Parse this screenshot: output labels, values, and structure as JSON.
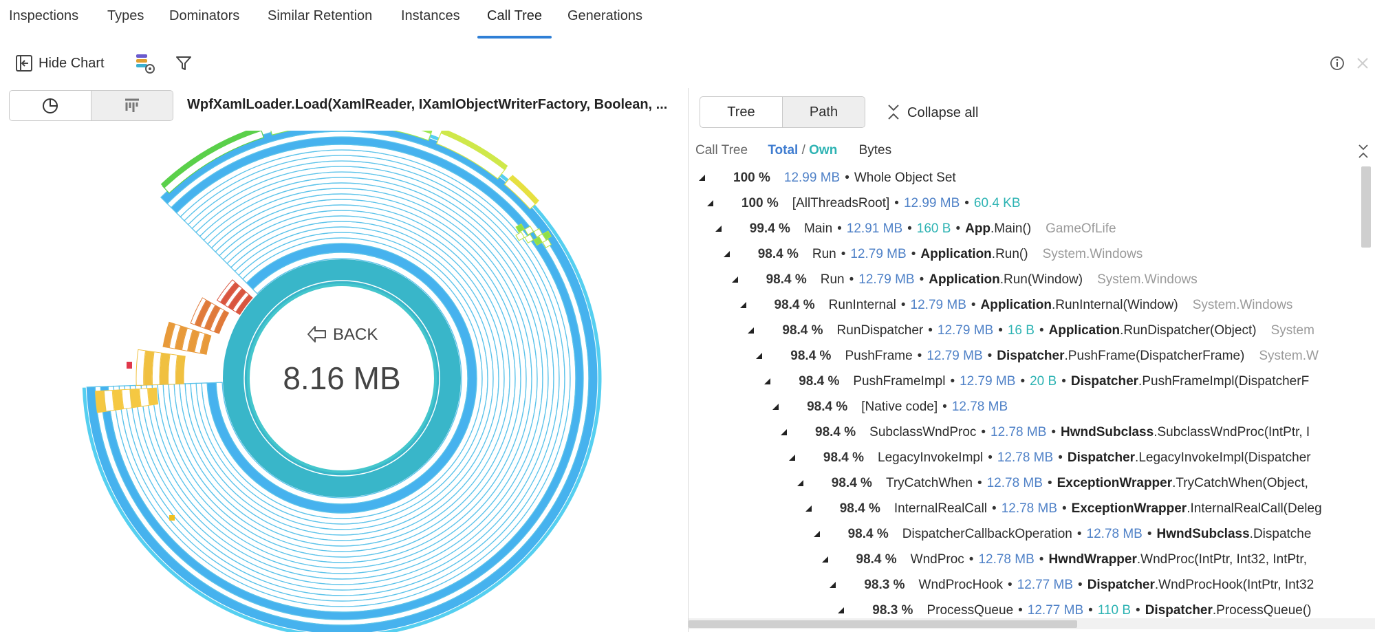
{
  "tabs": [
    "Inspections",
    "Types",
    "Dominators",
    "Similar Retention",
    "Instances",
    "Call Tree",
    "Generations"
  ],
  "active_tab_index": 5,
  "toolbar": {
    "hide_chart": "Hide Chart"
  },
  "chart_panel": {
    "title": "WpfXamlLoader.Load(XamlReader, IXamlObjectWriterFactory, Boolean, ...",
    "back": "BACK",
    "center_size": "8.16 MB"
  },
  "call_tree": {
    "modes": [
      "Tree",
      "Path"
    ],
    "active_mode_index": 0,
    "collapse_all": "Collapse all",
    "header": {
      "label": "Call Tree",
      "total": "Total",
      "slash": "/",
      "own": "Own",
      "unit": "Bytes"
    },
    "separator": "•",
    "rows": [
      {
        "percent": "100 %",
        "total": "12.99 MB",
        "label": "Whole Object Set"
      },
      {
        "percent": "100 %",
        "name": "[AllThreadsRoot]",
        "total": "12.99 MB",
        "own": "60.4 KB"
      },
      {
        "percent": "99.4 %",
        "name": "Main",
        "total": "12.91 MB",
        "own": "160 B",
        "class": "App",
        "method": ".Main()",
        "namespace": "GameOfLife"
      },
      {
        "percent": "98.4 %",
        "name": "Run",
        "total": "12.79 MB",
        "class": "Application",
        "method": ".Run()",
        "namespace": "System.Windows"
      },
      {
        "percent": "98.4 %",
        "name": "Run",
        "total": "12.79 MB",
        "class": "Application",
        "method": ".Run(Window)",
        "namespace": "System.Windows"
      },
      {
        "percent": "98.4 %",
        "name": "RunInternal",
        "total": "12.79 MB",
        "class": "Application",
        "method": ".RunInternal(Window)",
        "namespace": "System.Windows"
      },
      {
        "percent": "98.4 %",
        "name": "RunDispatcher",
        "total": "12.79 MB",
        "own": "16 B",
        "class": "Application",
        "method": ".RunDispatcher(Object)",
        "namespace": "System"
      },
      {
        "percent": "98.4 %",
        "name": "PushFrame",
        "total": "12.79 MB",
        "class": "Dispatcher",
        "method": ".PushFrame(DispatcherFrame)",
        "namespace": "System.W"
      },
      {
        "percent": "98.4 %",
        "name": "PushFrameImpl",
        "total": "12.79 MB",
        "own": "20 B",
        "class": "Dispatcher",
        "method": ".PushFrameImpl(DispatcherF"
      },
      {
        "percent": "98.4 %",
        "name": "[Native code]",
        "total": "12.78 MB"
      },
      {
        "percent": "98.4 %",
        "name": "SubclassWndProc",
        "total": "12.78 MB",
        "class": "HwndSubclass",
        "method": ".SubclassWndProc(IntPtr, I"
      },
      {
        "percent": "98.4 %",
        "name": "LegacyInvokeImpl",
        "total": "12.78 MB",
        "class": "Dispatcher",
        "method": ".LegacyInvokeImpl(Dispatcher"
      },
      {
        "percent": "98.4 %",
        "name": "TryCatchWhen",
        "total": "12.78 MB",
        "class": "ExceptionWrapper",
        "method": ".TryCatchWhen(Object,"
      },
      {
        "percent": "98.4 %",
        "name": "InternalRealCall",
        "total": "12.78 MB",
        "class": "ExceptionWrapper",
        "method": ".InternalRealCall(Deleg"
      },
      {
        "percent": "98.4 %",
        "name": "DispatcherCallbackOperation",
        "total": "12.78 MB",
        "class": "HwndSubclass",
        "method": ".Dispatche"
      },
      {
        "percent": "98.4 %",
        "name": "WndProc",
        "total": "12.78 MB",
        "class": "HwndWrapper",
        "method": ".WndProc(IntPtr, Int32, IntPtr,"
      },
      {
        "percent": "98.3 %",
        "name": "WndProcHook",
        "total": "12.77 MB",
        "class": "Dispatcher",
        "method": ".WndProcHook(IntPtr, Int32"
      },
      {
        "percent": "98.3 %",
        "name": "ProcessQueue",
        "total": "12.77 MB",
        "own": "110 B",
        "class": "Dispatcher",
        "method": ".ProcessQueue()"
      }
    ]
  }
}
